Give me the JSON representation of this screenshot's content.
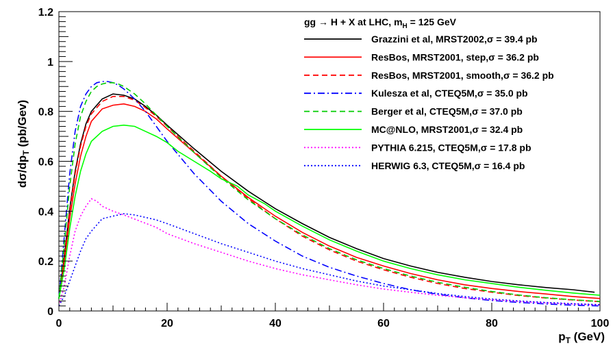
{
  "chart_data": {
    "type": "line",
    "title": "",
    "xlabel": "p_T (GeV)",
    "ylabel": "dσ/dp_T (pb/Gev)",
    "xlim": [
      0,
      100
    ],
    "ylim": [
      0,
      1.2
    ],
    "x_ticks": [
      0,
      20,
      40,
      60,
      80,
      100
    ],
    "y_ticks": [
      0,
      0.2,
      0.4,
      0.6,
      0.8,
      1,
      1.2
    ],
    "x_tick_labels": [
      "0",
      "20",
      "40",
      "60",
      "80",
      "100"
    ],
    "y_tick_labels": [
      "0",
      "0.2",
      "0.4",
      "0.6",
      "0.8",
      "1",
      "1.2"
    ],
    "grid": false,
    "legend_placement": "top-right",
    "legend_header": "gg → H + X at LHC, m_H = 125 GeV",
    "series": [
      {
        "name": "Grazzini et al, MRST2002,σ = 39.4 pb",
        "color": "#000000",
        "style": "solid",
        "x": [
          0,
          1,
          2,
          3,
          4,
          5,
          6,
          8,
          10,
          12,
          14,
          16,
          18,
          20,
          25,
          30,
          35,
          40,
          45,
          50,
          55,
          60,
          65,
          70,
          75,
          80,
          85,
          90,
          95,
          99
        ],
        "y": [
          0.05,
          0.22,
          0.41,
          0.56,
          0.67,
          0.75,
          0.8,
          0.85,
          0.87,
          0.865,
          0.85,
          0.82,
          0.785,
          0.745,
          0.65,
          0.56,
          0.48,
          0.41,
          0.35,
          0.295,
          0.25,
          0.21,
          0.18,
          0.155,
          0.135,
          0.118,
          0.105,
          0.094,
          0.085,
          0.075
        ]
      },
      {
        "name": "ResBos, MRST2001, step,σ = 36.2 pb",
        "color": "#ff0000",
        "style": "solid",
        "x": [
          0,
          1,
          2,
          3,
          4,
          5,
          6,
          8,
          10,
          12,
          14,
          16,
          18,
          20,
          25,
          30,
          35,
          40,
          45,
          50,
          55,
          60,
          65,
          70,
          75,
          80,
          85,
          90,
          95,
          100
        ],
        "y": [
          0.05,
          0.2,
          0.37,
          0.51,
          0.62,
          0.7,
          0.76,
          0.81,
          0.825,
          0.83,
          0.82,
          0.8,
          0.77,
          0.73,
          0.635,
          0.54,
          0.455,
          0.38,
          0.315,
          0.26,
          0.215,
          0.18,
          0.15,
          0.125,
          0.105,
          0.09,
          0.078,
          0.068,
          0.058,
          0.05
        ]
      },
      {
        "name": "ResBos, MRST2001, smooth,σ = 36.2 pb",
        "color": "#ff0000",
        "style": "dashed",
        "x": [
          0,
          1,
          2,
          3,
          4,
          5,
          6,
          8,
          10,
          12,
          14,
          16,
          18,
          20,
          25,
          30,
          35,
          40,
          45,
          50,
          55,
          60,
          65,
          70,
          75,
          80,
          85,
          90,
          95,
          100
        ],
        "y": [
          0.05,
          0.21,
          0.4,
          0.55,
          0.66,
          0.74,
          0.79,
          0.84,
          0.86,
          0.86,
          0.845,
          0.815,
          0.78,
          0.74,
          0.64,
          0.54,
          0.45,
          0.37,
          0.3,
          0.245,
          0.2,
          0.165,
          0.135,
          0.11,
          0.09,
          0.075,
          0.062,
          0.052,
          0.044,
          0.037
        ]
      },
      {
        "name": "Kulesza et al, CTEQ5M,σ = 35.0 pb",
        "color": "#0000ff",
        "style": "dashdot",
        "x": [
          0,
          1,
          2,
          3,
          4,
          5,
          6,
          7,
          8,
          9,
          10,
          11,
          12,
          14,
          16,
          18,
          20,
          25,
          30,
          35,
          40,
          45,
          50,
          55,
          60,
          65,
          70,
          75,
          80,
          85,
          90,
          95,
          100
        ],
        "y": [
          0.05,
          0.3,
          0.55,
          0.72,
          0.82,
          0.87,
          0.9,
          0.915,
          0.92,
          0.92,
          0.915,
          0.905,
          0.89,
          0.85,
          0.8,
          0.74,
          0.68,
          0.55,
          0.44,
          0.35,
          0.28,
          0.22,
          0.175,
          0.14,
          0.11,
          0.085,
          0.067,
          0.053,
          0.042,
          0.034,
          0.028,
          0.023,
          0.02
        ]
      },
      {
        "name": "Berger et al, CTEQ5M,σ = 37.0 pb",
        "color": "#00cc00",
        "style": "dashed",
        "x": [
          0,
          1,
          2,
          3,
          4,
          5,
          6,
          7,
          8,
          9,
          10,
          11,
          12,
          14,
          16,
          18,
          20,
          25,
          30,
          35,
          40,
          45,
          50,
          55,
          60,
          65,
          70,
          75,
          80,
          85,
          90,
          95,
          100
        ],
        "y": [
          0.05,
          0.27,
          0.5,
          0.67,
          0.78,
          0.84,
          0.88,
          0.9,
          0.91,
          0.915,
          0.915,
          0.91,
          0.9,
          0.87,
          0.83,
          0.785,
          0.74,
          0.635,
          0.535,
          0.445,
          0.37,
          0.305,
          0.25,
          0.205,
          0.17,
          0.14,
          0.115,
          0.095,
          0.078,
          0.064,
          0.053,
          0.045,
          0.038
        ]
      },
      {
        "name": "MC@NLO, MRST2001,σ = 32.4 pb",
        "color": "#00ff00",
        "style": "solid",
        "x": [
          0,
          1,
          2,
          3,
          4,
          5,
          6,
          8,
          10,
          12,
          14,
          16,
          18,
          20,
          22,
          25,
          28,
          30,
          33,
          35,
          38,
          40,
          45,
          50,
          55,
          60,
          65,
          70,
          75,
          80,
          85,
          90,
          95,
          100
        ],
        "y": [
          0.05,
          0.17,
          0.33,
          0.46,
          0.56,
          0.63,
          0.68,
          0.72,
          0.74,
          0.745,
          0.74,
          0.72,
          0.7,
          0.675,
          0.64,
          0.6,
          0.56,
          0.53,
          0.5,
          0.465,
          0.43,
          0.4,
          0.34,
          0.285,
          0.24,
          0.2,
          0.17,
          0.145,
          0.125,
          0.11,
          0.095,
          0.083,
          0.072,
          0.063
        ]
      },
      {
        "name": "PYTHIA 6.215, CTEQ5M,σ = 17.8 pb",
        "color": "#ff00ff",
        "style": "dotted",
        "x": [
          0,
          1,
          2,
          3,
          4,
          5,
          6,
          7,
          8,
          10,
          12,
          15,
          18,
          20,
          25,
          30,
          35,
          40,
          45,
          50,
          55,
          60,
          65,
          70,
          75,
          80,
          85,
          90,
          95,
          100
        ],
        "y": [
          0.02,
          0.1,
          0.22,
          0.32,
          0.38,
          0.42,
          0.45,
          0.44,
          0.42,
          0.4,
          0.385,
          0.36,
          0.335,
          0.31,
          0.27,
          0.235,
          0.2,
          0.17,
          0.145,
          0.125,
          0.105,
          0.088,
          0.075,
          0.063,
          0.053,
          0.045,
          0.038,
          0.032,
          0.028,
          0.024
        ]
      },
      {
        "name": "HERWIG 6.3, CTEQ5M,σ = 16.4 pb",
        "color": "#0000ff",
        "style": "dotted",
        "x": [
          0,
          1,
          2,
          3,
          4,
          5,
          6,
          8,
          10,
          12,
          14,
          16,
          18,
          20,
          25,
          30,
          35,
          40,
          45,
          50,
          55,
          60,
          65,
          70,
          75,
          80,
          85,
          90,
          95,
          100
        ],
        "y": [
          0.02,
          0.06,
          0.12,
          0.18,
          0.24,
          0.29,
          0.32,
          0.37,
          0.38,
          0.39,
          0.385,
          0.375,
          0.365,
          0.35,
          0.31,
          0.27,
          0.235,
          0.2,
          0.17,
          0.145,
          0.12,
          0.1,
          0.085,
          0.07,
          0.058,
          0.048,
          0.04,
          0.034,
          0.029,
          0.025
        ]
      }
    ]
  }
}
